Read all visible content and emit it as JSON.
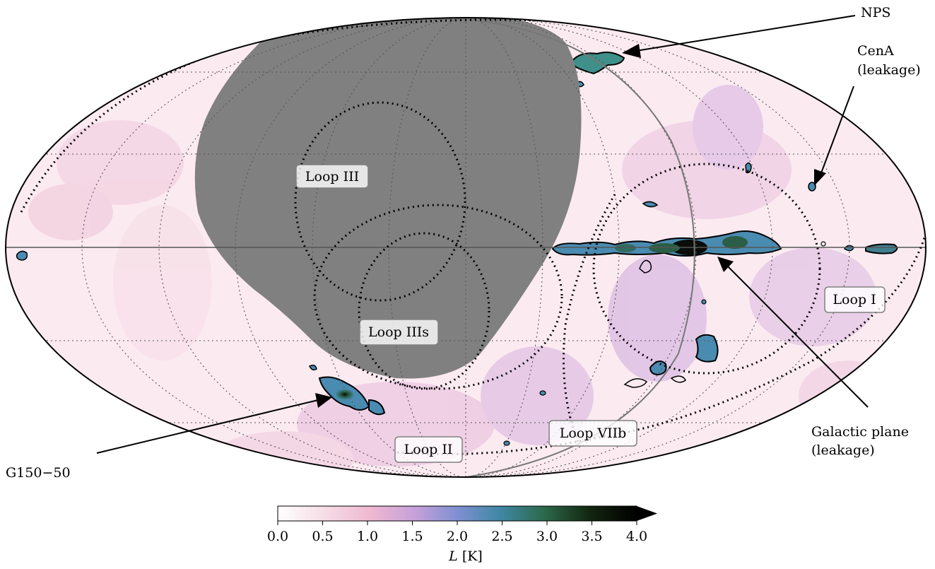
{
  "labels": {
    "loop_iii": "Loop III",
    "loop_iiis": "Loop IIIs",
    "loop_ii": "Loop II",
    "loop_viib": "Loop VIIb",
    "loop_i": "Loop I"
  },
  "annotations": {
    "nps": "NPS",
    "cena_line1": "CenA",
    "cena_line2": "(leakage)",
    "g150": "G150−50",
    "gal_plane_line1": "Galactic plane",
    "gal_plane_line2": "(leakage)"
  },
  "colorbar": {
    "ticks": [
      "0.0",
      "0.5",
      "1.0",
      "1.5",
      "2.0",
      "2.5",
      "3.0",
      "3.5",
      "4.0"
    ],
    "label_symbol": "L",
    "label_unit": " [K]",
    "min": 0.0,
    "max": 4.0,
    "extend": "max",
    "colormap_stops": [
      "#ffffff",
      "#f3cfdc",
      "#c3a0d8",
      "#7b8fd0",
      "#3e86a0",
      "#2e6a4f",
      "#13220f",
      "#000000"
    ]
  },
  "colors": {
    "masked_region": "#808080",
    "map_background": "#fbeaf0",
    "contour": "#000000",
    "hotspot_fill": "#3e86a0"
  },
  "projection": "mollweide"
}
